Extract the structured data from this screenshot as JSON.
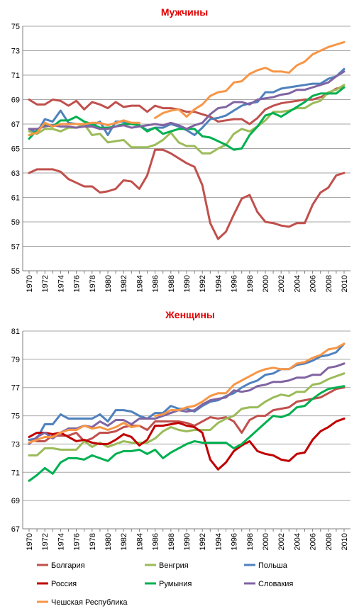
{
  "chart_data": [
    {
      "type": "line",
      "title": "Мужчины",
      "title_color": "#e00000",
      "x": [
        1970,
        1971,
        1972,
        1973,
        1974,
        1975,
        1976,
        1977,
        1978,
        1979,
        1980,
        1981,
        1982,
        1983,
        1984,
        1985,
        1986,
        1987,
        1988,
        1989,
        1990,
        1991,
        1992,
        1993,
        1994,
        1995,
        1996,
        1997,
        1998,
        1999,
        2000,
        2001,
        2002,
        2003,
        2004,
        2005,
        2006,
        2007,
        2008,
        2009,
        2010
      ],
      "x_ticks": [
        "1970",
        "1972",
        "1974",
        "1976",
        "1978",
        "1980",
        "1982",
        "1984",
        "1986",
        "1988",
        "1990",
        "1992",
        "1994",
        "1996",
        "1998",
        "2000",
        "2002",
        "2004",
        "2006",
        "2008",
        "2010"
      ],
      "ylim": [
        55,
        75
      ],
      "y_ticks": [
        "55",
        "57",
        "59",
        "61",
        "63",
        "65",
        "67",
        "69",
        "71",
        "73",
        "75"
      ],
      "grid": true,
      "series": [
        {
          "name": "Болгария",
          "color": "#c0504d",
          "values": [
            69.0,
            68.6,
            68.6,
            69.0,
            68.9,
            68.5,
            68.9,
            68.2,
            68.8,
            68.6,
            68.3,
            68.8,
            68.4,
            68.5,
            68.5,
            68.0,
            68.5,
            68.3,
            68.3,
            68.2,
            68.0,
            68.0,
            67.8,
            67.6,
            67.2,
            67.3,
            67.4,
            67.4,
            67.0,
            67.5,
            68.2,
            68.5,
            68.7,
            68.8,
            68.9,
            69.0,
            69.0,
            69.2,
            69.5,
            69.9,
            70.0
          ]
        },
        {
          "name": "Венгрия",
          "color": "#9bbb59",
          "values": [
            66.4,
            66.2,
            66.6,
            66.6,
            66.4,
            66.7,
            66.7,
            67.0,
            66.1,
            66.2,
            65.5,
            65.6,
            65.7,
            65.1,
            65.1,
            65.1,
            65.3,
            65.7,
            66.3,
            65.5,
            65.2,
            65.2,
            64.6,
            64.6,
            65.0,
            65.3,
            66.2,
            66.6,
            66.4,
            66.8,
            67.3,
            68.0,
            68.0,
            68.1,
            68.3,
            68.3,
            68.7,
            68.9,
            69.6,
            69.8,
            70.2
          ]
        },
        {
          "name": "Польша",
          "color": "#4f81bd",
          "values": [
            66.6,
            66.3,
            67.4,
            67.2,
            68.1,
            67.1,
            67.0,
            67.0,
            66.9,
            67.2,
            66.1,
            67.2,
            67.2,
            67.0,
            66.9,
            66.5,
            66.7,
            66.7,
            67.0,
            66.8,
            66.5,
            66.1,
            66.7,
            67.4,
            67.5,
            67.7,
            68.1,
            68.5,
            68.7,
            68.8,
            69.6,
            69.6,
            69.9,
            70.0,
            70.1,
            70.2,
            70.3,
            70.3,
            70.7,
            70.9,
            71.5
          ]
        },
        {
          "name": "Россия",
          "color": "#c0504d",
          "values": [
            63.0,
            63.3,
            63.3,
            63.3,
            63.1,
            62.5,
            62.2,
            61.9,
            61.9,
            61.4,
            61.5,
            61.7,
            62.4,
            62.3,
            61.7,
            62.8,
            64.9,
            64.9,
            64.6,
            64.2,
            63.8,
            63.5,
            62.0,
            58.9,
            57.6,
            58.2,
            59.6,
            60.9,
            61.2,
            59.8,
            59.0,
            58.9,
            58.7,
            58.6,
            58.9,
            58.9,
            60.4,
            61.4,
            61.8,
            62.8,
            63.0
          ]
        },
        {
          "name": "Румыния",
          "color": "#00b050",
          "values": [
            65.8,
            66.5,
            66.9,
            66.8,
            67.3,
            67.3,
            67.6,
            67.2,
            67.0,
            66.7,
            66.7,
            66.8,
            67.0,
            67.0,
            66.9,
            66.4,
            66.7,
            66.2,
            66.4,
            66.6,
            66.6,
            66.6,
            66.0,
            65.9,
            65.6,
            65.3,
            64.9,
            65.0,
            66.1,
            66.8,
            67.7,
            67.9,
            67.6,
            68.0,
            68.4,
            68.8,
            69.3,
            69.5,
            69.5,
            69.5,
            70.0
          ]
        },
        {
          "name": "Словакия",
          "color": "#8064a2",
          "values": [
            66.6,
            66.6,
            66.8,
            66.9,
            66.8,
            66.8,
            66.7,
            66.8,
            66.8,
            66.6,
            66.6,
            66.8,
            66.9,
            66.7,
            66.8,
            66.9,
            67.0,
            66.9,
            67.1,
            66.9,
            66.6,
            66.9,
            67.1,
            67.8,
            68.3,
            68.4,
            68.8,
            68.8,
            68.6,
            69.0,
            69.1,
            69.2,
            69.4,
            69.5,
            69.8,
            69.8,
            70.0,
            70.2,
            70.4,
            70.9,
            71.3
          ]
        },
        {
          "name": "Чешская Республика",
          "color": "#f79646",
          "values": [
            66.1,
            66.3,
            67.1,
            66.8,
            67.0,
            67.0,
            67.0,
            67.0,
            67.1,
            67.1,
            66.9,
            67.1,
            67.3,
            67.1,
            67.1,
            null,
            67.5,
            67.9,
            68.1,
            68.2,
            67.6,
            68.2,
            68.6,
            69.3,
            69.6,
            69.7,
            70.4,
            70.5,
            71.1,
            71.4,
            71.6,
            71.3,
            71.3,
            71.2,
            71.8,
            72.1,
            72.7,
            73.0,
            73.3,
            73.5,
            73.7
          ]
        }
      ]
    },
    {
      "type": "line",
      "title": "Женщины",
      "title_color": "#e00000",
      "x": [
        1970,
        1971,
        1972,
        1973,
        1974,
        1975,
        1976,
        1977,
        1978,
        1979,
        1980,
        1981,
        1982,
        1983,
        1984,
        1985,
        1986,
        1987,
        1988,
        1989,
        1990,
        1991,
        1992,
        1993,
        1994,
        1995,
        1996,
        1997,
        1998,
        1999,
        2000,
        2001,
        2002,
        2003,
        2004,
        2005,
        2006,
        2007,
        2008,
        2009,
        2010
      ],
      "x_ticks": [
        "1970",
        "1972",
        "1974",
        "1976",
        "1978",
        "1980",
        "1982",
        "1984",
        "1986",
        "1988",
        "1990",
        "1992",
        "1994",
        "1996",
        "1998",
        "2000",
        "2002",
        "2004",
        "2006",
        "2008",
        "2010"
      ],
      "ylim": [
        67,
        81
      ],
      "y_ticks": [
        "67",
        "69",
        "71",
        "73",
        "75",
        "77",
        "79",
        "81"
      ],
      "grid": true,
      "series": [
        {
          "name": "Болгария",
          "color": "#c0504d",
          "values": [
            73.3,
            73.2,
            73.2,
            73.6,
            73.6,
            73.6,
            73.8,
            73.2,
            73.4,
            73.8,
            73.8,
            73.9,
            74.2,
            74.3,
            74.3,
            74.0,
            74.6,
            74.6,
            74.6,
            74.6,
            74.5,
            74.3,
            74.6,
            74.9,
            74.8,
            74.9,
            74.6,
            73.8,
            74.7,
            75.0,
            75.0,
            75.4,
            75.5,
            75.6,
            76.0,
            76.1,
            76.2,
            76.3,
            76.6,
            76.9,
            77.0
          ]
        },
        {
          "name": "Венгрия",
          "color": "#9bbb59",
          "values": [
            72.2,
            72.2,
            72.7,
            72.7,
            72.6,
            72.6,
            72.6,
            73.2,
            72.8,
            73.1,
            72.8,
            73.0,
            73.2,
            73.1,
            73.1,
            73.1,
            73.4,
            73.9,
            74.2,
            74.0,
            73.9,
            74.0,
            74.0,
            74.0,
            74.5,
            74.8,
            75.0,
            75.5,
            75.6,
            75.6,
            76.0,
            76.3,
            76.5,
            76.4,
            76.7,
            76.7,
            77.2,
            77.3,
            77.6,
            77.8,
            78.0
          ]
        },
        {
          "name": "Польша",
          "color": "#4f81bd",
          "values": [
            73.3,
            73.4,
            74.4,
            74.4,
            75.1,
            74.8,
            74.8,
            74.8,
            74.8,
            75.1,
            74.6,
            75.4,
            75.4,
            75.3,
            75.0,
            74.8,
            75.2,
            75.2,
            75.7,
            75.5,
            75.5,
            75.3,
            75.7,
            76.0,
            76.1,
            76.4,
            76.6,
            77.0,
            77.3,
            77.5,
            77.9,
            78.0,
            78.3,
            78.3,
            78.6,
            78.7,
            78.9,
            79.2,
            79.3,
            79.5,
            80.1
          ]
        },
        {
          "name": "Россия",
          "color": "#c00000",
          "values": [
            73.5,
            73.8,
            73.8,
            73.7,
            73.8,
            73.5,
            73.2,
            73.3,
            73.1,
            73.0,
            73.0,
            73.3,
            73.7,
            73.5,
            72.9,
            73.3,
            74.3,
            74.3,
            74.4,
            74.5,
            74.3,
            74.2,
            73.8,
            71.9,
            71.2,
            71.7,
            72.5,
            72.9,
            73.2,
            72.5,
            72.3,
            72.2,
            71.9,
            71.8,
            72.3,
            72.4,
            73.3,
            73.9,
            74.2,
            74.6,
            74.8
          ]
        },
        {
          "name": "Румыния",
          "color": "#00b050",
          "values": [
            70.4,
            70.8,
            71.3,
            70.9,
            71.7,
            72.0,
            72.0,
            71.9,
            72.2,
            72.0,
            71.8,
            72.3,
            72.5,
            72.5,
            72.6,
            72.3,
            72.6,
            72.0,
            72.4,
            72.7,
            73.0,
            73.2,
            73.1,
            73.1,
            73.1,
            73.1,
            72.7,
            73.0,
            73.5,
            74.0,
            74.5,
            75.0,
            74.9,
            75.1,
            75.6,
            75.7,
            76.2,
            76.6,
            76.9,
            77.0,
            77.1
          ]
        },
        {
          "name": "Словакия",
          "color": "#8064a2",
          "values": [
            73.0,
            73.5,
            73.8,
            73.4,
            73.8,
            74.1,
            74.1,
            74.3,
            74.2,
            74.6,
            74.3,
            74.7,
            74.7,
            74.4,
            74.8,
            74.8,
            74.8,
            75.0,
            75.2,
            75.4,
            75.3,
            75.4,
            75.8,
            76.1,
            76.2,
            76.3,
            76.8,
            76.7,
            76.8,
            77.1,
            77.2,
            77.4,
            77.4,
            77.5,
            77.7,
            77.7,
            77.9,
            77.9,
            78.4,
            78.5,
            78.7
          ]
        },
        {
          "name": "Чешская Республика",
          "color": "#f79646",
          "values": [
            73.1,
            73.3,
            73.5,
            73.5,
            73.8,
            74.0,
            74.0,
            74.3,
            74.1,
            74.2,
            74.0,
            74.2,
            74.5,
            74.2,
            74.3,
            null,
            75.0,
            75.1,
            75.4,
            75.4,
            75.6,
            75.7,
            76.0,
            76.4,
            76.6,
            76.6,
            77.2,
            77.5,
            77.8,
            78.1,
            78.3,
            78.4,
            78.3,
            78.3,
            78.7,
            78.8,
            79.1,
            79.3,
            79.7,
            79.8,
            80.1
          ]
        }
      ]
    }
  ]
}
